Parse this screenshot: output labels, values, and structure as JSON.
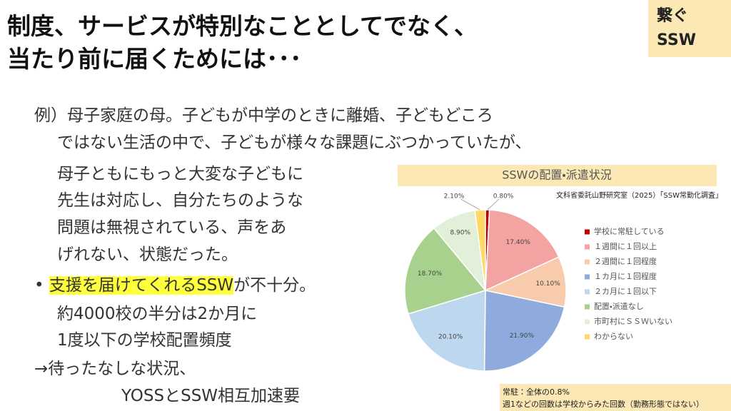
{
  "header": {
    "title_lines": [
      "制度、サービスが特別なこととしてでなく、",
      "当たり前に届くためには･･･"
    ],
    "tag_lines": [
      "繋ぐ",
      "SSW"
    ]
  },
  "body": {
    "lines": [
      "例）母子家庭の母。子どもが中学のときに離婚、子どもどころ",
      "ではない生活の中で、子どもが様々な課題にぶつかっていたが、",
      "母子ともにもっと大変な子どもに",
      "先生は対応し、自分たちのような",
      "問題は無視されている、声をあ",
      "げれない、状態だった。"
    ],
    "bullet": "•",
    "highlight": "支援を届けてくれるSSW",
    "bullet_rest": "が不十分。",
    "after_lines": [
      "約4000校の半分は2か月に",
      "1度以下の学校配置頻度"
    ],
    "arrow_line": "→待ったなしな状況、",
    "last_line": "YOSSとSSW相互加速要"
  },
  "chart_data": {
    "type": "pie",
    "title": "SSWの配置・派遣状況",
    "subtitle": "文科省委託山野研究室（2025）「SSW常勤化調査」",
    "categories": [
      "学校に常駐している",
      "１週間に１回以上",
      "２週間に１回程度",
      "１カ月に１回程度",
      "２カ月に１回以下",
      "配置・派遣なし",
      "市町村にＳＳＷいない",
      "わからない"
    ],
    "values": [
      0.8,
      17.4,
      10.1,
      21.9,
      20.1,
      18.7,
      8.9,
      2.1
    ],
    "value_labels": [
      "0.80%",
      "17.40%",
      "10.10%",
      "21.90%",
      "20.10%",
      "18.70%",
      "8.90%",
      "2.10%"
    ],
    "colors": [
      "#c00000",
      "#f4a3a3",
      "#f8cbad",
      "#8faadc",
      "#bdd7ee",
      "#a9d18e",
      "#e2efd9",
      "#ffd966"
    ]
  },
  "note": {
    "lines": [
      "常駐：全体の0.8%",
      "週1などの回数は学校からみた回数（勤務形態ではない）"
    ]
  }
}
